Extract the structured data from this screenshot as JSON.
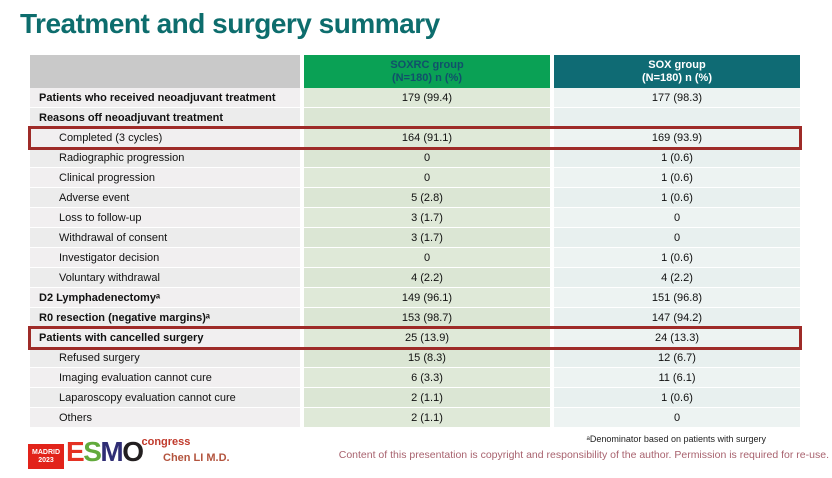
{
  "title": "Treatment and surgery summary",
  "colors": {
    "title_teal": "#0d6d6d",
    "header_green": "#0aa155",
    "header_teal": "#0f6b74",
    "soxrc_cell_green": "#dbe6d4",
    "sox_cell_blue": "#e8f0ef",
    "highlight_red": "#9e2b28",
    "logo_red": "#e2231a",
    "author_red": "#b3543e",
    "copyright_rose": "#a8626e"
  },
  "table": {
    "columns": [
      {
        "line1": "SOXRC group",
        "line2": "(N=180)  n (%)"
      },
      {
        "line1": "SOX group",
        "line2": "(N=180)  n (%)"
      }
    ],
    "rows": [
      {
        "label": "Patients who received neoadjuvant treatment",
        "soxrc": "179 (99.4)",
        "sox": "177 (98.3)"
      },
      {
        "label": "Reasons off neoadjuvant treatment",
        "soxrc": "",
        "sox": ""
      },
      {
        "label": "Completed (3 cycles)",
        "soxrc": "164 (91.1)",
        "sox": "169 (93.9)"
      },
      {
        "label": "Radiographic progression",
        "soxrc": "0",
        "sox": "1 (0.6)"
      },
      {
        "label": "Clinical progression",
        "soxrc": "0",
        "sox": "1 (0.6)"
      },
      {
        "label": "Adverse event",
        "soxrc": "5 (2.8)",
        "sox": "1 (0.6)"
      },
      {
        "label": "Loss to follow-up",
        "soxrc": "3 (1.7)",
        "sox": "0"
      },
      {
        "label": "Withdrawal of consent",
        "soxrc": "3 (1.7)",
        "sox": "0"
      },
      {
        "label": "Investigator decision",
        "soxrc": "0",
        "sox": "1 (0.6)"
      },
      {
        "label": "Voluntary withdrawal",
        "soxrc": "4 (2.2)",
        "sox": "4 (2.2)"
      },
      {
        "label": "D2 Lymphadenectomyᵃ",
        "soxrc": "149 (96.1)",
        "sox": "151 (96.8)"
      },
      {
        "label": "R0 resection (negative margins)ᵃ",
        "soxrc": "153 (98.7)",
        "sox": "147 (94.2)"
      },
      {
        "label": "Patients with cancelled surgery",
        "soxrc": "25 (13.9)",
        "sox": "24 (13.3)"
      },
      {
        "label": "Refused surgery",
        "soxrc": "15 (8.3)",
        "sox": "12 (6.7)"
      },
      {
        "label": "Imaging evaluation cannot cure",
        "soxrc": "6 (3.3)",
        "sox": "11 (6.1)"
      },
      {
        "label": "Laparoscopy evaluation cannot cure",
        "soxrc": "2 (1.1)",
        "sox": "1 (0.6)"
      },
      {
        "label": "Others",
        "soxrc": "2 (1.1)",
        "sox": "0"
      }
    ]
  },
  "footer": {
    "logo": {
      "badge_line1": "MADRID",
      "badge_line2": "2023",
      "letter_e": "E",
      "letter_s": "S",
      "letter_m": "M",
      "letter_o": "O",
      "congress": "congress"
    },
    "author": "Chen LI M.D.",
    "footnote": "ᵃDenominator based on patients with surgery",
    "copyright": "Content of this presentation is copyright and responsibility of the author. Permission is required for re-use."
  }
}
